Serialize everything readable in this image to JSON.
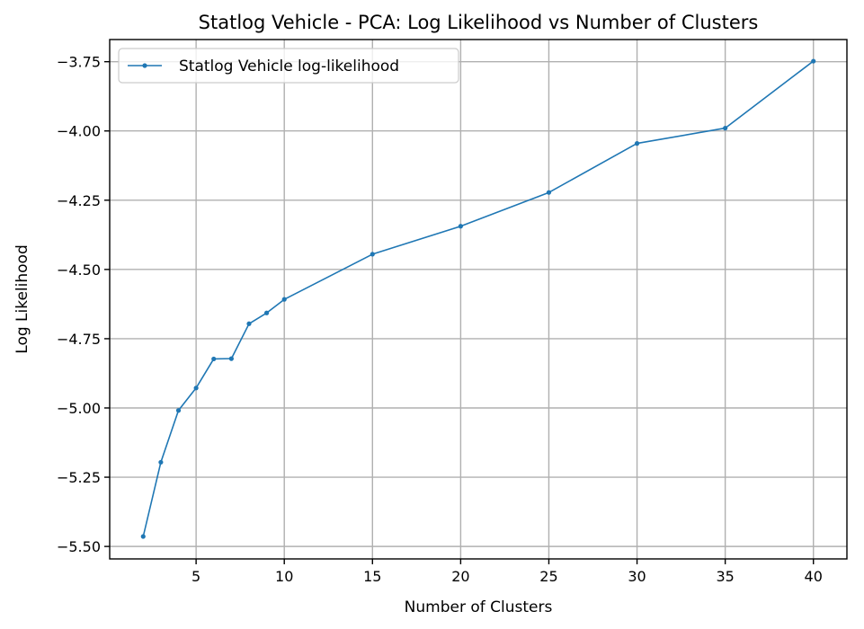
{
  "chart_data": {
    "type": "line",
    "title": "Statlog Vehicle - PCA: Log Likelihood vs Number of Clusters",
    "xlabel": "Number of Clusters",
    "ylabel": "Log Likelihood",
    "xlim": [
      0.1,
      41.9
    ],
    "ylim": [
      -5.545,
      -3.67
    ],
    "xticks": [
      5,
      10,
      15,
      20,
      25,
      30,
      35,
      40
    ],
    "xtick_labels": [
      "5",
      "10",
      "15",
      "20",
      "25",
      "30",
      "35",
      "40"
    ],
    "yticks": [
      -5.5,
      -5.25,
      -5.0,
      -4.75,
      -4.5,
      -4.25,
      -4.0,
      -3.75
    ],
    "ytick_labels": [
      "−5.50",
      "−5.25",
      "−5.00",
      "−4.75",
      "−4.50",
      "−4.25",
      "−4.00",
      "−3.75"
    ],
    "grid": true,
    "legend": "upper-left",
    "series": [
      {
        "name": "Statlog Vehicle log-likelihood",
        "color": "#1f77b4",
        "marker": "dot",
        "x": [
          2,
          3,
          4,
          5,
          6,
          7,
          8,
          9,
          10,
          15,
          20,
          25,
          30,
          35,
          40
        ],
        "y": [
          -5.464,
          -5.196,
          -5.009,
          -4.928,
          -4.823,
          -4.822,
          -4.696,
          -4.657,
          -4.608,
          -4.445,
          -4.344,
          -4.222,
          -4.045,
          -3.99,
          -3.748
        ]
      }
    ]
  }
}
